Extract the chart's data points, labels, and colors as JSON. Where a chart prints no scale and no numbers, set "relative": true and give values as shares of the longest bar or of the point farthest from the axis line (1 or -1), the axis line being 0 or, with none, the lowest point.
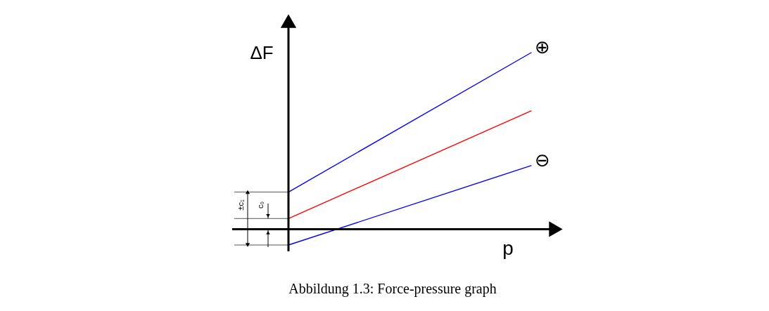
{
  "chart_data": {
    "type": "line",
    "relative": true,
    "xlabel": "p",
    "ylabel": "ΔF",
    "categories": [
      null,
      null
    ],
    "series": [
      {
        "name": "⊕",
        "color": "#0000ff",
        "values": [
          0.21,
          1.0
        ]
      },
      {
        "color": "#ff0000",
        "values": [
          0.06,
          0.67
        ]
      },
      {
        "name": "⊖",
        "color": "#0000ff",
        "values": [
          -0.09,
          0.36
        ]
      }
    ],
    "annotations": [
      "±c₁",
      "c₀",
      "Abbildung 1.3: Force-pressure graph"
    ]
  }
}
